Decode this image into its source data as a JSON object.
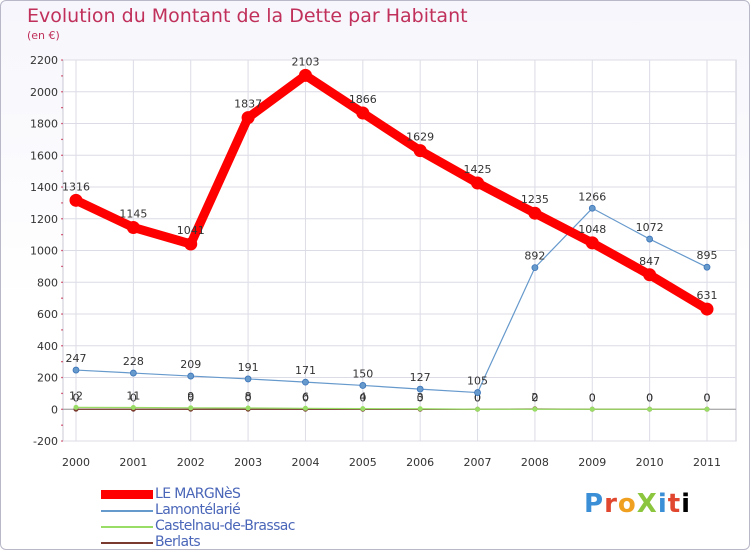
{
  "title": "Evolution du Montant de la Dette par Habitant",
  "unit": "(en €)",
  "logo": "ProXiti",
  "chart_data": {
    "type": "line",
    "title": "Evolution du Montant de la Dette par Habitant",
    "subtitle": "(en €)",
    "xlabel": "",
    "ylabel": "",
    "x": [
      "2000",
      "2001",
      "2002",
      "2003",
      "2004",
      "2005",
      "2006",
      "2007",
      "2008",
      "2009",
      "2010",
      "2011"
    ],
    "ylim": [
      -200,
      2200
    ],
    "yticks": [
      -200,
      0,
      200,
      400,
      600,
      800,
      1000,
      1200,
      1400,
      1600,
      1800,
      2000,
      2200
    ],
    "grid": true,
    "legend_position": "bottom-left",
    "series": [
      {
        "name": "LE MARGNèS",
        "color": "#ff0000",
        "values": [
          1316,
          1145,
          1041,
          1837,
          2103,
          1866,
          1629,
          1425,
          1235,
          1048,
          847,
          631
        ]
      },
      {
        "name": "Lamontélarié",
        "color": "#6699cc",
        "values": [
          247,
          228,
          209,
          191,
          171,
          150,
          127,
          105,
          892,
          1266,
          1072,
          895
        ]
      },
      {
        "name": "Castelnau-de-Brassac",
        "color": "#99dd66",
        "values": [
          12,
          11,
          9,
          8,
          6,
          4,
          3,
          0,
          0,
          0,
          0,
          0
        ]
      },
      {
        "name": "Berlats",
        "color": "#7a3b2e",
        "values": [
          0,
          0,
          0,
          0,
          0,
          0,
          0,
          0,
          2,
          0,
          0,
          0
        ]
      }
    ]
  }
}
